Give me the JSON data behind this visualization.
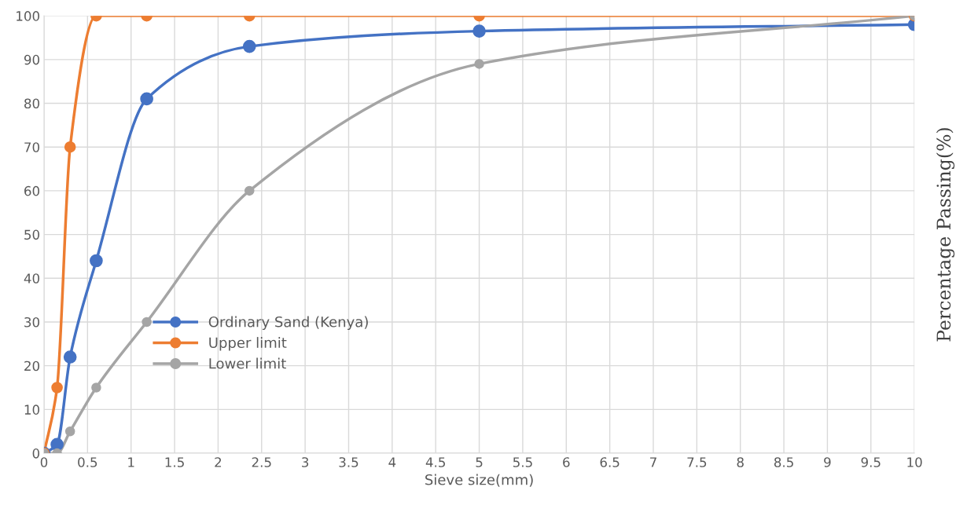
{
  "chart_data": {
    "type": "line",
    "xlabel": "Sieve size(mm)",
    "ylabel": "Percentage Passing(%)",
    "x": [
      0,
      0.15,
      0.3,
      0.6,
      1.18,
      2.36,
      5,
      10
    ],
    "series": [
      {
        "name": "Ordinary Sand (Kenya)",
        "color": "#4472c4",
        "values": [
          0,
          2,
          22,
          44,
          81,
          93,
          96.5,
          98
        ]
      },
      {
        "name": "Upper limit",
        "color": "#ed7d31",
        "values": [
          0,
          15,
          70,
          100,
          100,
          100,
          100,
          100
        ]
      },
      {
        "name": "Lower limit",
        "color": "#a5a5a5",
        "values": [
          0,
          0,
          5,
          15,
          30,
          60,
          89,
          100
        ]
      }
    ],
    "xlim": [
      0,
      10
    ],
    "xticks": [
      0,
      0.5,
      1,
      1.5,
      2,
      2.5,
      3,
      3.5,
      4,
      4.5,
      5,
      5.5,
      6,
      6.5,
      7,
      7.5,
      8,
      8.5,
      9,
      9.5,
      10
    ],
    "ylim": [
      0,
      100
    ],
    "yticks": [
      0,
      10,
      20,
      30,
      40,
      50,
      60,
      70,
      80,
      90,
      100
    ],
    "grid": true,
    "legend": "center",
    "marker": "circle",
    "line_style": "solid"
  }
}
